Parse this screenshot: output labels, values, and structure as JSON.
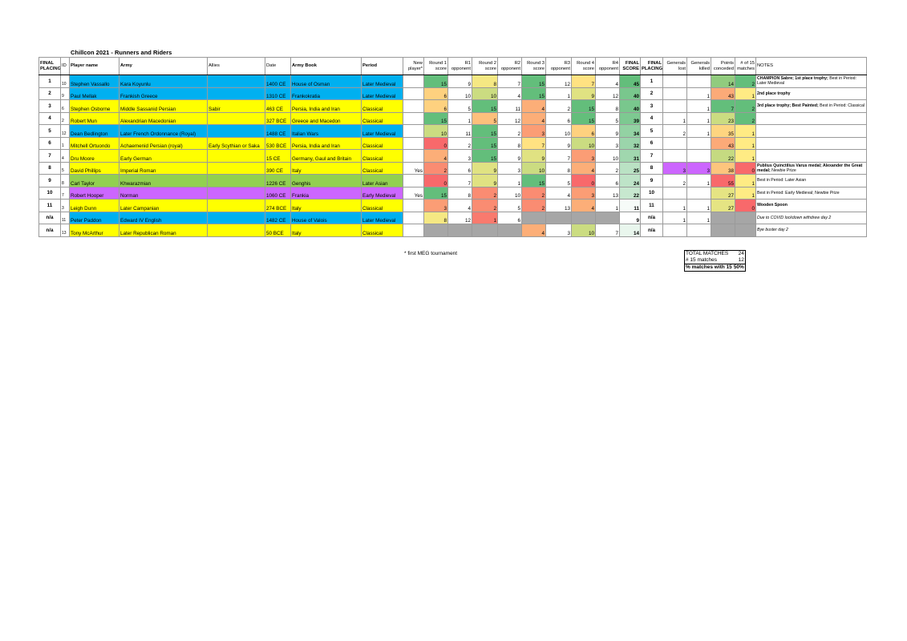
{
  "title": "Chillcon 2021 - Runners and Riders",
  "table": {
    "columns": [
      "FINAL PLACING",
      "ID",
      "Player name",
      "Army",
      "Allies",
      "Date",
      "Army Book",
      "Period",
      "New player*",
      "Round 1 score",
      "R1 opponent",
      "Round 2 score",
      "R2 opponent",
      "Round 3 score",
      "R3 opponent",
      "Round 4 score",
      "R4 opponent",
      "FINAL SCORE",
      "FINAL PLACING",
      "Generals lost",
      "Generals killed",
      "Points conceded",
      "# of 15 matches",
      "NOTES"
    ],
    "row_colors": [
      "#00b0f0",
      "#00b0f0",
      "#ffff00",
      "#ffff00",
      "#00b0f0",
      "#ffff00",
      "#ffff00",
      "#ffff00",
      "#92d050",
      "#cc66ff",
      "#ffff00",
      "#00b0f0",
      "#ffff00"
    ],
    "rows": [
      [
        1,
        10,
        "Stephen Vassallo",
        "Kara Koyunlu",
        null,
        "1400 CE",
        "House of Osman",
        "Later Medieval",
        null,
        15,
        9,
        8,
        7,
        15,
        12,
        7,
        4,
        45,
        1,
        null,
        null,
        14,
        2,
        {
          "bold": "CHAMPION Sabre; 1st place trophy;",
          "text": "Best in Period: Later Medieval"
        }
      ],
      [
        2,
        9,
        "Paul Mellak",
        "Frankish Greece",
        null,
        "1310 CE",
        "Frankokratia",
        "Later Medieval",
        null,
        6,
        10,
        10,
        4,
        15,
        1,
        9,
        12,
        40,
        2,
        null,
        1,
        43,
        1,
        {
          "bold": "2nd place trophy"
        }
      ],
      [
        3,
        6,
        "Stephen Osborne",
        "Middle Sassanid Persian",
        "Sabir",
        "463 CE",
        "Persia, India and Iran",
        "Classical",
        null,
        6,
        5,
        15,
        11,
        4,
        2,
        15,
        8,
        40,
        3,
        null,
        1,
        7,
        2,
        {
          "bold": "3rd place trophy; Best Painted;",
          "text": "Best in Period: Classical"
        }
      ],
      [
        4,
        2,
        "Robert Mun",
        "Alexandrian Macedonian",
        null,
        "327 BCE",
        "Greece and Macedon",
        "Classical",
        null,
        15,
        1,
        5,
        12,
        4,
        6,
        15,
        5,
        39,
        4,
        1,
        1,
        23,
        2,
        null
      ],
      [
        5,
        12,
        "Dean Bedlington",
        "Later French Ordonnance (Royal)",
        null,
        "1488 CE",
        "Italian Wars",
        "Later Medieval",
        null,
        10,
        11,
        15,
        2,
        3,
        10,
        6,
        9,
        34,
        5,
        2,
        1,
        35,
        1,
        null
      ],
      [
        6,
        1,
        "Mitchell Ortuondo",
        "Achaemenid Persian (royal)",
        "Early Scythian or Saka",
        "530 BCE",
        "Persia, India and Iran",
        "Classical",
        null,
        0,
        2,
        15,
        8,
        7,
        9,
        10,
        3,
        32,
        6,
        null,
        null,
        43,
        1,
        null
      ],
      [
        7,
        4,
        "Dru Moore",
        "Early German",
        null,
        "15 CE",
        "Germany, Gaul and Britain",
        "Classical",
        null,
        4,
        3,
        15,
        9,
        9,
        7,
        3,
        10,
        31,
        7,
        null,
        null,
        22,
        1,
        null
      ],
      [
        8,
        5,
        "David Phillips",
        "Imperial Roman",
        null,
        "390 CE",
        "Italy",
        "Classical",
        "Yes",
        2,
        6,
        9,
        3,
        10,
        8,
        4,
        2,
        25,
        8,
        3,
        3,
        38,
        0,
        {
          "bold": "Publius Quinctilius Varus medal; Alexander the Great medal;",
          "text": "Newbie Prize"
        }
      ],
      [
        9,
        8,
        "Carl Taylor",
        "Khwarazmian",
        null,
        "1226 CE",
        "Genghis",
        "Later Asian",
        null,
        0,
        7,
        9,
        1,
        15,
        5,
        0,
        6,
        24,
        9,
        2,
        1,
        55,
        1,
        {
          "text": "Best in Period: Later Asian"
        }
      ],
      [
        10,
        7,
        "Robert Hooper",
        "Norman",
        null,
        "1060 CE",
        "Frankia",
        "Early Medieval",
        "Yes",
        15,
        8,
        2,
        10,
        2,
        4,
        3,
        13,
        22,
        10,
        null,
        null,
        27,
        1,
        {
          "text": "Best in Period: Early Medieval;  Newbie Prize"
        }
      ],
      [
        11,
        3,
        "Leigh Dunn",
        "Later Campanian",
        null,
        "274 BCE",
        "Italy",
        "Classical",
        null,
        3,
        4,
        2,
        5,
        2,
        13,
        4,
        1,
        11,
        11,
        1,
        1,
        27,
        0,
        {
          "bold": "Wooden Spoon"
        }
      ],
      [
        "n/a",
        11,
        "Peter Paddon",
        "Edward IV English",
        null,
        "1482 CE",
        "House of Valois",
        "Later Medieval",
        null,
        8,
        12,
        1,
        6,
        null,
        null,
        null,
        null,
        9,
        "n/a",
        1,
        1,
        null,
        null,
        {
          "italic": "Due to COVID lockdown withdrew day 2"
        }
      ],
      [
        "n/a",
        13,
        "Tony McArthur",
        "Later Republican Roman",
        null,
        "50 BCE",
        "Italy",
        "Classical",
        null,
        null,
        null,
        null,
        null,
        4,
        3,
        10,
        7,
        14,
        "n/a",
        null,
        null,
        null,
        null,
        {
          "italic": "Bye buster day 2"
        }
      ]
    ]
  },
  "footnote": "* first MEG tournament",
  "summary": [
    [
      "TOTAL MATCHES",
      24
    ],
    [
      "# 15 matches",
      12
    ],
    [
      "% matches with 15",
      {
        "value": 50,
        "label": "50%"
      }
    ]
  ]
}
